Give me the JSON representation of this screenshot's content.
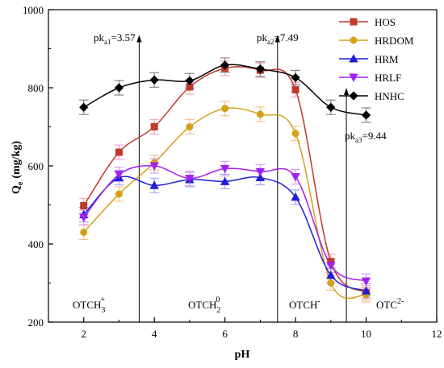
{
  "chart_data": {
    "type": "line",
    "xlabel": "pH",
    "ylabel": "Q",
    "ylabel_sub": "e",
    "ylabel_unit": "(mg/kg)",
    "xlim": [
      1,
      12
    ],
    "ylim": [
      200,
      1000
    ],
    "x_ticks": [
      2,
      4,
      6,
      8,
      10,
      12
    ],
    "y_ticks": [
      200,
      400,
      600,
      800,
      1000
    ],
    "x_tick_labels": [
      "2",
      "4",
      "6",
      "8",
      "10",
      "12"
    ],
    "y_tick_labels": [
      "200",
      "400",
      "600",
      "800",
      "1000"
    ],
    "grid": false,
    "legend_position": "top-right",
    "x": [
      2,
      3,
      4,
      5,
      6,
      7,
      8,
      9,
      10
    ],
    "series": [
      {
        "name": "HOS",
        "color": "#c0392b",
        "marker": "square",
        "error_color": "#f5a9b8",
        "values": [
          498,
          635,
          700,
          802,
          850,
          845,
          795,
          355,
          275
        ]
      },
      {
        "name": "HRDOM",
        "color": "#d4a017",
        "marker": "circle",
        "error_color": "#f5c38a",
        "values": [
          430,
          528,
          608,
          700,
          747,
          732,
          683,
          300,
          270
        ]
      },
      {
        "name": "HRM",
        "color": "#1f1fd6",
        "marker": "triangle-up",
        "error_color": "#a9a9f5",
        "values": [
          475,
          570,
          550,
          565,
          560,
          570,
          520,
          320,
          280
        ]
      },
      {
        "name": "HRLF",
        "color": "#a020f0",
        "marker": "triangle-down",
        "error_color": "#dda0f5",
        "values": [
          468,
          578,
          600,
          568,
          593,
          585,
          572,
          345,
          305
        ]
      },
      {
        "name": "HNHC",
        "color": "#000000",
        "marker": "diamond",
        "error_color": "#888888",
        "values": [
          750,
          800,
          820,
          818,
          858,
          848,
          826,
          750,
          730
        ]
      }
    ],
    "vlines": [
      {
        "x": 3.57,
        "label_base": "pk",
        "label_sub": "a1",
        "label_value": "=3.57"
      },
      {
        "x": 7.49,
        "label_base": "pk",
        "label_sub": "a2",
        "label_value": "=7.49"
      },
      {
        "x": 9.44,
        "label_base": "pk",
        "label_sub": "a3",
        "label_value": "=9.44"
      }
    ],
    "species_labels": [
      {
        "base": "OTCH",
        "sub": "3",
        "sup": "+"
      },
      {
        "base": "OTCH",
        "sub": "2",
        "sup": "0"
      },
      {
        "base": "OTCH",
        "sub": "",
        "sup": "-"
      },
      {
        "base": "OTC",
        "sub": "",
        "sup": "2-"
      }
    ]
  }
}
